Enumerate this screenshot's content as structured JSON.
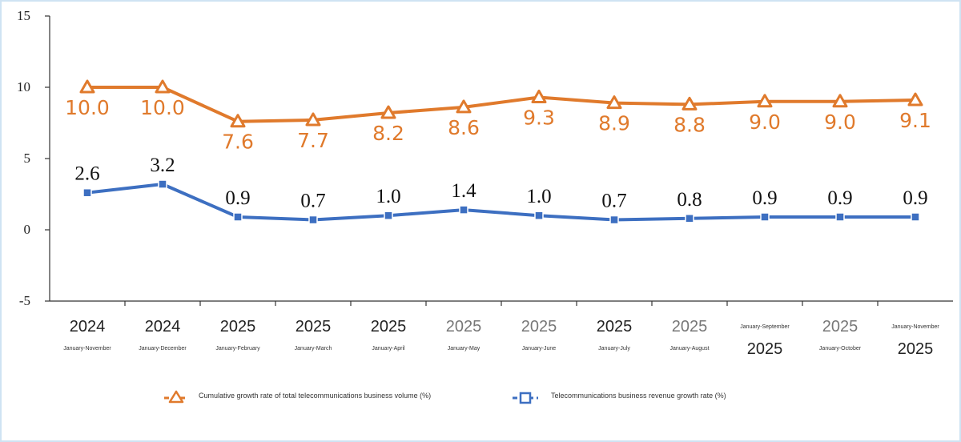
{
  "chart_data": {
    "type": "line",
    "ylim": [
      -5,
      15
    ],
    "yticks": [
      15,
      10,
      5,
      0,
      -5
    ],
    "categories": [
      {
        "year": "2024",
        "period": "January-November",
        "layout": "year-first",
        "faded": false
      },
      {
        "year": "2024",
        "period": "January-December",
        "layout": "year-first",
        "faded": false
      },
      {
        "year": "2025",
        "period": "January-February",
        "layout": "year-first",
        "faded": false
      },
      {
        "year": "2025",
        "period": "January-March",
        "layout": "year-first",
        "faded": false
      },
      {
        "year": "2025",
        "period": "January-April",
        "layout": "year-first",
        "faded": false
      },
      {
        "year": "2025",
        "period": "January-May",
        "layout": "year-first",
        "faded": true
      },
      {
        "year": "2025",
        "period": "January-June",
        "layout": "year-first",
        "faded": true
      },
      {
        "year": "2025",
        "period": "January-July",
        "layout": "year-first",
        "faded": false
      },
      {
        "year": "2025",
        "period": "January-August",
        "layout": "year-first",
        "faded": true
      },
      {
        "year": "2025",
        "period": "January-September",
        "layout": "period-first",
        "faded": false
      },
      {
        "year": "2025",
        "period": "January-October",
        "layout": "year-first",
        "faded": true
      },
      {
        "year": "2025",
        "period": "January-November",
        "layout": "period-first",
        "faded": false
      }
    ],
    "series": [
      {
        "name": "Cumulative growth rate of total telecommunications business volume (%)",
        "color": "#e07a2c",
        "marker": "triangle",
        "values": [
          10.0,
          10.0,
          7.6,
          7.7,
          8.2,
          8.6,
          9.3,
          8.9,
          8.8,
          9.0,
          9.0,
          9.1
        ],
        "labels": [
          "10.0",
          "10.0",
          "7.6",
          "7.7",
          "8.2",
          "8.6",
          "9.3",
          "8.9",
          "8.8",
          "9.0",
          "9.0",
          "9.1"
        ]
      },
      {
        "name": "Telecommunications business revenue growth rate (%)",
        "color": "#3d6fc1",
        "marker": "square",
        "values": [
          2.6,
          3.2,
          0.9,
          0.7,
          1.0,
          1.4,
          1.0,
          0.7,
          0.8,
          0.9,
          0.9,
          0.9
        ],
        "labels": [
          "2.6",
          "3.2",
          "0.9",
          "0.7",
          "1.0",
          "1.4",
          "1.0",
          "0.7",
          "0.8",
          "0.9",
          "0.9",
          "0.9"
        ]
      }
    ]
  }
}
